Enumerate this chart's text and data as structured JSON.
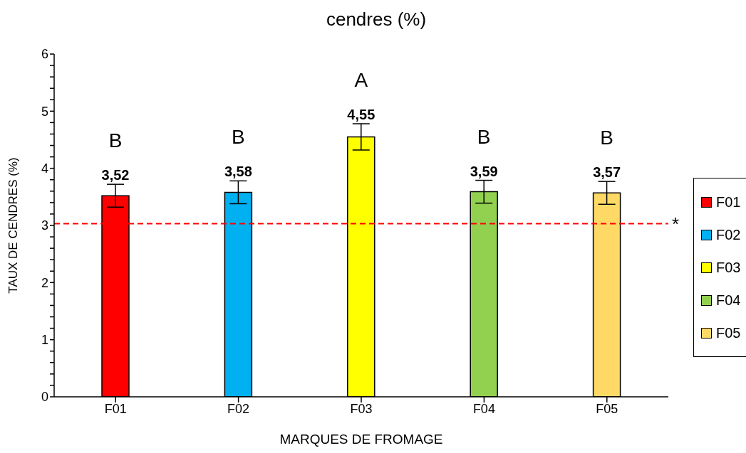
{
  "chart_data": {
    "type": "bar",
    "title": "cendres (%)",
    "xlabel": "MARQUES DE FROMAGE",
    "ylabel": "TAUX DE CENDRES (%)",
    "categories": [
      "F01",
      "F02",
      "F03",
      "F04",
      "F05"
    ],
    "series": [
      {
        "values": [
          3.52,
          3.58,
          4.55,
          3.59,
          3.57
        ],
        "colors": [
          "#ff0000",
          "#00b0f0",
          "#ffff00",
          "#92d050",
          "#ffd966"
        ],
        "errors": [
          0.2,
          0.2,
          0.23,
          0.2,
          0.2
        ],
        "value_labels": [
          "3,52",
          "3,58",
          "4,55",
          "3,59",
          "3,57"
        ]
      }
    ],
    "ylim": [
      0,
      6
    ],
    "yticks": [
      0,
      {
        "value": 0.2,
        "label": null
      },
      {
        "value": 0.4,
        "label": null
      },
      {
        "value": 0.6,
        "label": null
      },
      {
        "value": 0.8,
        "label": null
      },
      1,
      {
        "value": 1.2,
        "label": null
      },
      {
        "value": 1.4,
        "label": null
      },
      {
        "value": 1.6,
        "label": null
      },
      {
        "value": 1.8,
        "label": null
      },
      2,
      {
        "value": 2.2,
        "label": null
      },
      {
        "value": 2.4,
        "label": null
      },
      {
        "value": 2.6,
        "label": null
      },
      {
        "value": 2.8,
        "label": null
      },
      3,
      {
        "value": 3.2,
        "label": null
      },
      {
        "value": 3.4,
        "label": null
      },
      {
        "value": 3.6,
        "label": null
      },
      {
        "value": 3.8,
        "label": null
      },
      4,
      {
        "value": 4.2,
        "label": null
      },
      {
        "value": 4.4,
        "label": null
      },
      {
        "value": 4.6,
        "label": null
      },
      {
        "value": 4.8,
        "label": null
      },
      5,
      {
        "value": 5.2,
        "label": null
      },
      {
        "value": 5.4,
        "label": null
      },
      {
        "value": 5.6,
        "label": null
      },
      {
        "value": 5.8,
        "label": null
      },
      6
    ],
    "ref_lines": [
      {
        "axis": "y",
        "value": 3.03,
        "label": "*",
        "color": "#ff0000",
        "line_style": "dashed"
      }
    ],
    "annotations": [
      "B",
      "B",
      "A",
      "B",
      "B"
    ],
    "legend": "right",
    "grid": false
  }
}
